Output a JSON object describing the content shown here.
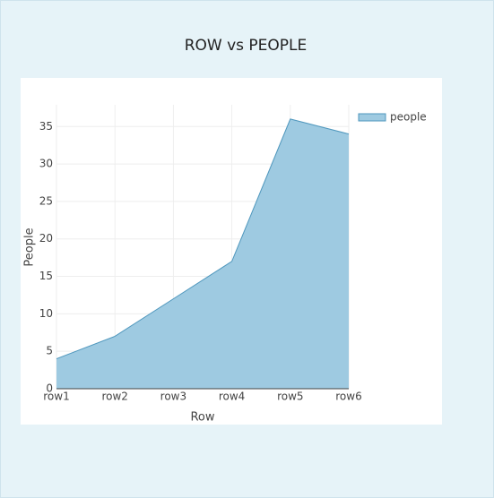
{
  "chart_data": {
    "type": "area",
    "title": "ROW vs PEOPLE",
    "x_label": "Row",
    "y_label": "People",
    "categories": [
      "row1",
      "row2",
      "row3",
      "row4",
      "row5",
      "row6"
    ],
    "series": [
      {
        "name": "people",
        "color": "#9ecae1",
        "line_color": "#4f97bd",
        "values": [
          4,
          7,
          12,
          17,
          36,
          34
        ]
      }
    ],
    "ylim": [
      0,
      37.9
    ],
    "yticks": [
      0,
      5,
      10,
      15,
      20,
      25,
      30,
      35
    ],
    "grid": true,
    "legend": "top-right"
  }
}
